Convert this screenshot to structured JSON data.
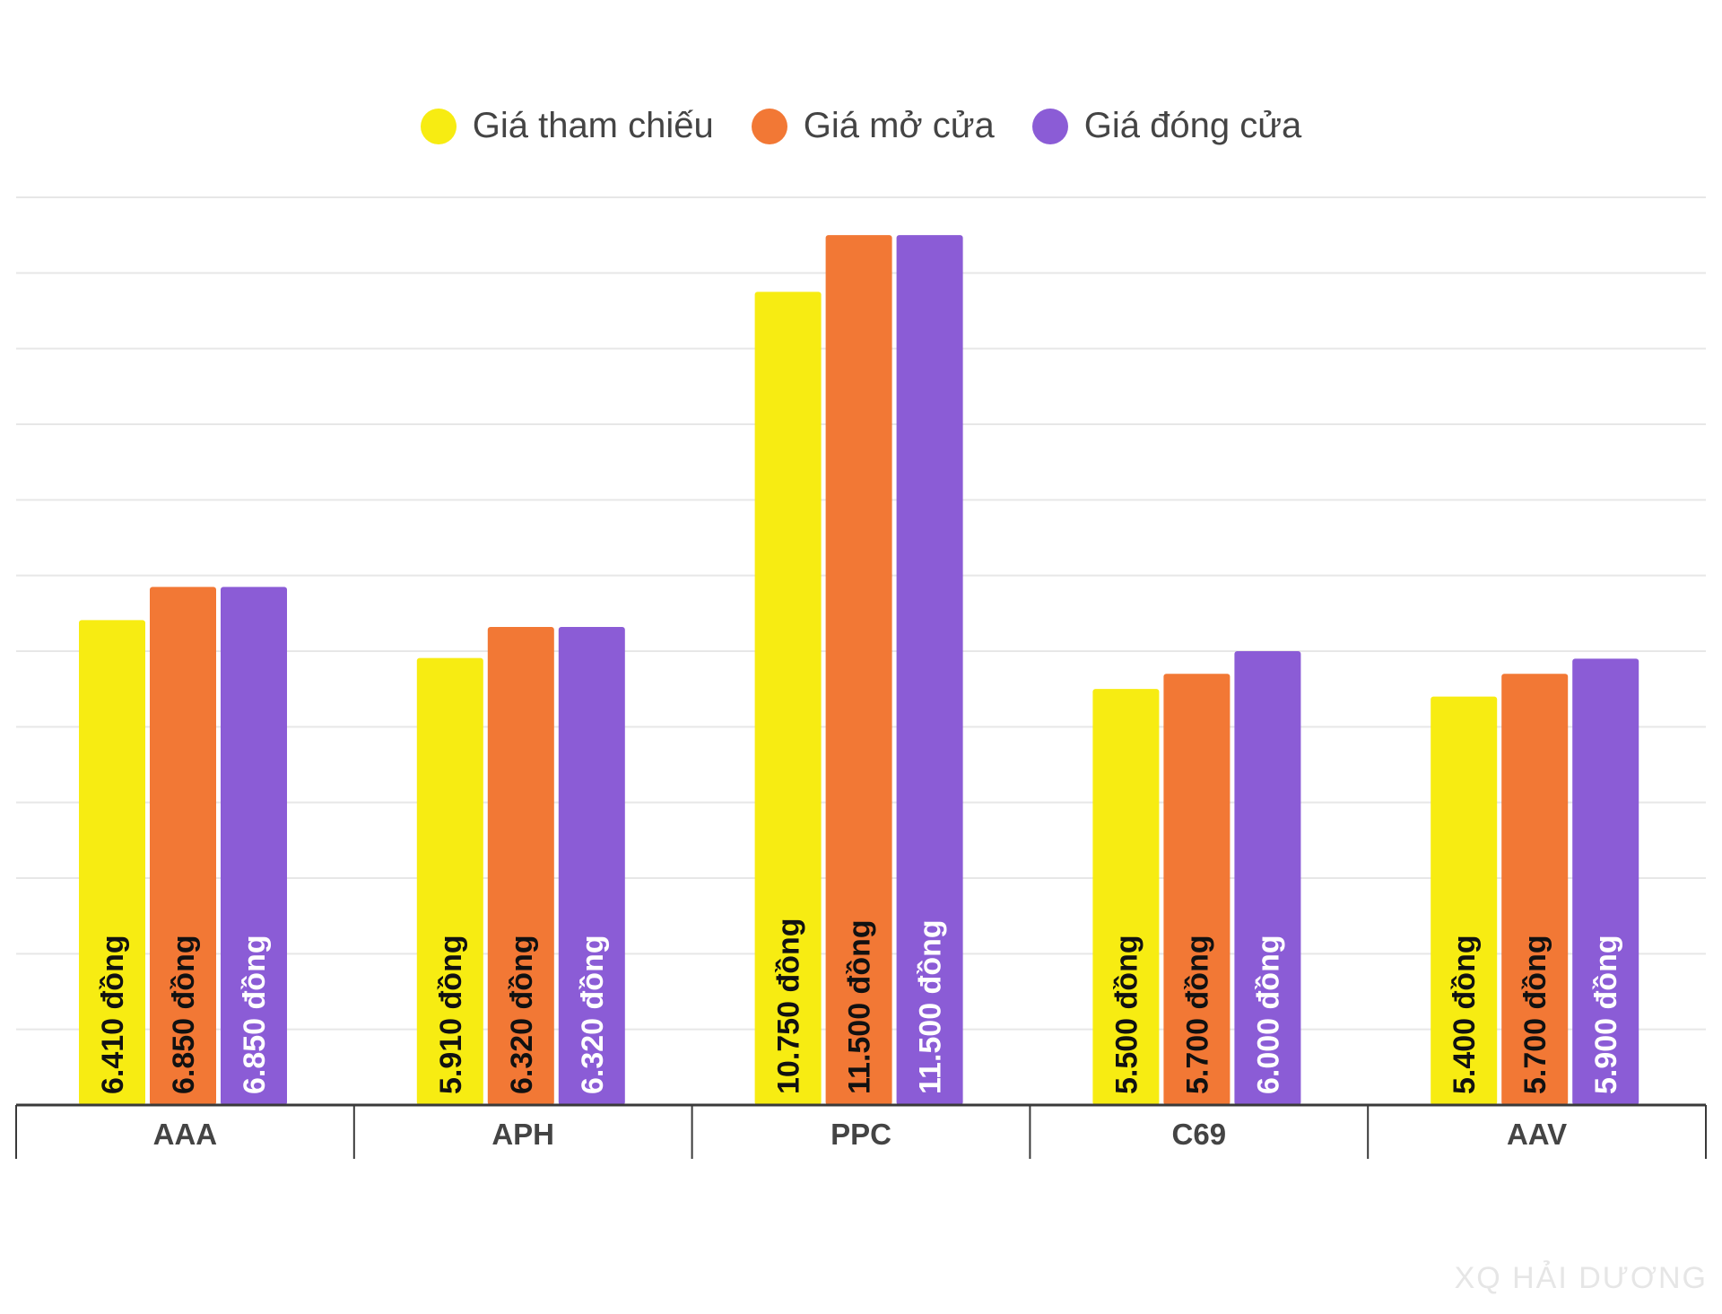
{
  "legend": [
    {
      "label": "Giá tham chiếu",
      "color": "#f7ec12"
    },
    {
      "label": "Giá mở cửa",
      "color": "#f27835"
    },
    {
      "label": "Giá đóng cửa",
      "color": "#8b5cd6"
    }
  ],
  "watermark": "XQ HẢI DƯƠNG",
  "chart_data": {
    "type": "bar",
    "categories": [
      "AAA",
      "APH",
      "PPC",
      "C69",
      "AAV"
    ],
    "series": [
      {
        "name": "Giá tham chiếu",
        "color": "#f7ec12",
        "label_color": "#111111",
        "values": [
          6410,
          5910,
          10750,
          5500,
          5400
        ],
        "labels": [
          "6.410 đồng",
          "5.910 đồng",
          "10.750 đồng",
          "5.500 đồng",
          "5.400 đồng"
        ]
      },
      {
        "name": "Giá mở cửa",
        "color": "#f27835",
        "label_color": "#111111",
        "values": [
          6850,
          6320,
          11500,
          5700,
          5700
        ],
        "labels": [
          "6.850 đồng",
          "6.320 đồng",
          "11.500 đồng",
          "5.700 đồng",
          "5.700 đồng"
        ]
      },
      {
        "name": "Giá đóng cửa",
        "color": "#8b5cd6",
        "label_color": "#ffffff",
        "values": [
          6850,
          6320,
          11500,
          6000,
          5900
        ],
        "labels": [
          "6.850 đồng",
          "6.320 đồng",
          "11.500 đồng",
          "6.000 đồng",
          "5.900 đồng"
        ]
      }
    ],
    "ylim": [
      0,
      12000
    ],
    "grid": true,
    "legend_position": "top-center"
  }
}
